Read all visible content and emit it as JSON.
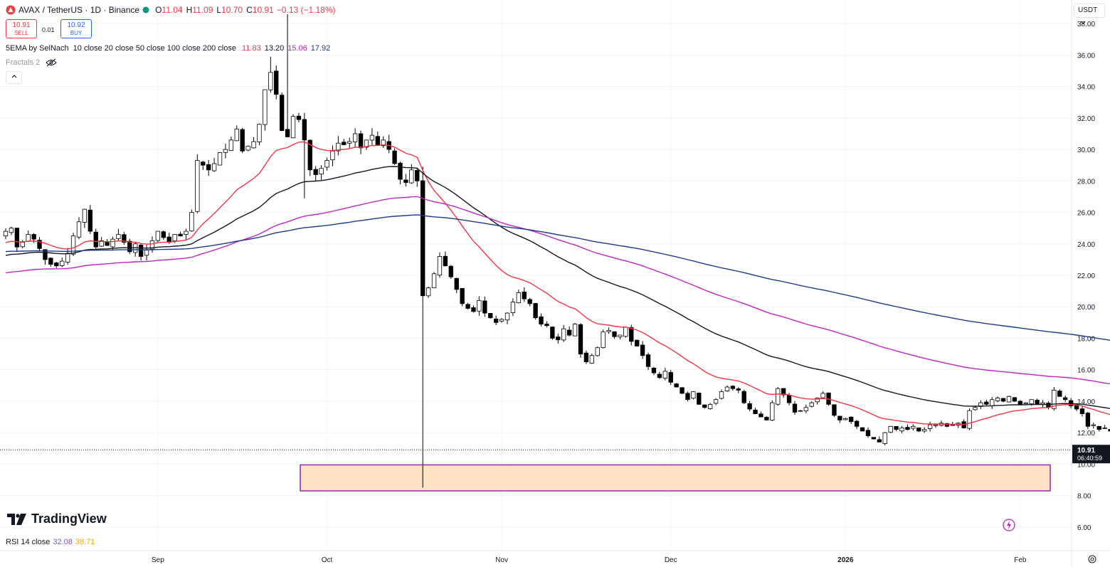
{
  "header": {
    "title": "AVAX / TetherUS · 1D · Binance",
    "ohlc": [
      {
        "label": "O",
        "value": "11.04"
      },
      {
        "label": "H",
        "value": "11.09"
      },
      {
        "label": "L",
        "value": "10.70"
      },
      {
        "label": "C",
        "value": "10.91"
      }
    ],
    "change": "−0.13 (−1.18%)",
    "status_color": "#089981"
  },
  "trade": {
    "sell_price": "10.91",
    "sell_label": "SELL",
    "spread": "0.01",
    "buy_price": "10.92",
    "buy_label": "BUY"
  },
  "indicators": {
    "ema_name": "5EMA by SelNach",
    "ema_params": "10 close 20 close 50 close 100 close 200 close",
    "ema_values": [
      {
        "value": "11.83",
        "color": "#f23645"
      },
      {
        "value": "13.20",
        "color": "#131722"
      },
      {
        "value": "15.06",
        "color": "#c026c0"
      },
      {
        "value": "17.92",
        "color": "#1e3a8a"
      }
    ],
    "fractals_label": "Fractals 2",
    "fractals_icon": "eye-hidden-icon",
    "collapse_icon": "chevron-up-icon"
  },
  "price_scale": {
    "currency": "USDT",
    "last_price": "10.91",
    "countdown": "06:40:59"
  },
  "branding": {
    "logo_text": "TradingView"
  },
  "rsi": {
    "label": "RSI 14 close",
    "value1": "32.08",
    "value2": "38.71",
    "value1_color": "#7e57c2",
    "value2_color": "#f7a600"
  },
  "colors": {
    "up_body": "#ffffff",
    "down_body": "#000000",
    "candle_border": "#000000",
    "ema20": "#f23645",
    "ema50": "#131722",
    "ema100": "#c026c0",
    "ema200": "#1e3a8a",
    "zone_fill": "#fde3c4",
    "zone_border": "#9c27b0",
    "grid": "#f0f3fa",
    "lightning": "#c026c0"
  },
  "chart_data": {
    "type": "candlestick",
    "title": "AVAX / TetherUS · 1D · Binance",
    "ylim": [
      4.5,
      39.5
    ],
    "y_ticks": [
      "6.00",
      "8.00",
      "10.00",
      "12.00",
      "14.00",
      "16.00",
      "18.00",
      "20.00",
      "22.00",
      "24.00",
      "26.00",
      "28.00",
      "30.00",
      "32.00",
      "34.00",
      "36.00",
      "38.00"
    ],
    "x_tick_labels": [
      "Sep",
      "Oct",
      "Nov",
      "Dec",
      "2026",
      "Feb"
    ],
    "x_tick_dates": [
      "2025-09-01",
      "2025-10-01",
      "2025-11-01",
      "2025-12-01",
      "2026-01-01",
      "2026-02-01"
    ],
    "date_range": [
      "2025-08-05",
      "2026-01-30"
    ],
    "closes": [
      24.8,
      25.0,
      23.8,
      24.1,
      24.6,
      24.3,
      23.7,
      23.0,
      22.7,
      22.6,
      22.9,
      23.4,
      24.5,
      25.4,
      26.2,
      24.8,
      23.8,
      24.2,
      23.9,
      24.3,
      24.6,
      24.1,
      23.5,
      24.0,
      23.2,
      23.6,
      24.2,
      24.8,
      24.4,
      24.1,
      24.6,
      24.5,
      24.8,
      26.0,
      29.3,
      29.0,
      28.7,
      29.1,
      29.8,
      30.0,
      30.6,
      31.3,
      29.9,
      30.2,
      30.5,
      31.6,
      33.8,
      34.9,
      33.5,
      31.2,
      30.8,
      32.1,
      31.9,
      30.6,
      28.7,
      28.4,
      28.8,
      29.3,
      29.9,
      30.4,
      30.3,
      30.5,
      31.0,
      30.1,
      30.6,
      30.9,
      30.3,
      30.6,
      30.0,
      29.1,
      28.1,
      27.9,
      28.7,
      28.0,
      20.7,
      21.2,
      22.1,
      23.2,
      22.6,
      21.9,
      21.1,
      20.2,
      19.9,
      19.7,
      20.4,
      19.6,
      19.3,
      19.0,
      19.2,
      19.6,
      20.3,
      20.9,
      20.5,
      20.2,
      19.3,
      18.9,
      18.8,
      18.0,
      17.9,
      18.6,
      18.2,
      18.9,
      17.0,
      16.5,
      16.9,
      17.4,
      18.4,
      18.5,
      18.1,
      18.2,
      18.7,
      17.8,
      17.5,
      16.9,
      16.2,
      15.8,
      15.5,
      15.9,
      15.2,
      14.9,
      14.5,
      14.1,
      14.6,
      13.8,
      13.6,
      13.8,
      14.1,
      14.6,
      14.9,
      14.8,
      14.7,
      13.9,
      13.5,
      13.2,
      13.0,
      12.8,
      13.9,
      14.8,
      14.4,
      13.9,
      13.3,
      13.4,
      13.6,
      13.9,
      14.2,
      14.5,
      13.8,
      13.1,
      12.8,
      12.9,
      12.7,
      12.4,
      12.1,
      11.8,
      11.6,
      11.4,
      12.0,
      12.4,
      12.2,
      12.3,
      12.2,
      12.4,
      12.1,
      12.2,
      12.5,
      12.5,
      12.6,
      12.4,
      12.5,
      12.6,
      12.3,
      13.4,
      13.6,
      13.9,
      13.8,
      14.1,
      14.2,
      14.0,
      14.3,
      14.0,
      13.8,
      13.9,
      14.1,
      13.8,
      13.9,
      13.6,
      14.7,
      14.3,
      14.1,
      13.7,
      13.5,
      13.2,
      12.4,
      12.5,
      12.2,
      12.3,
      12.1,
      11.9,
      11.5,
      11.4,
      11.9,
      12.0,
      11.9,
      11.1,
      10.91
    ]
  }
}
